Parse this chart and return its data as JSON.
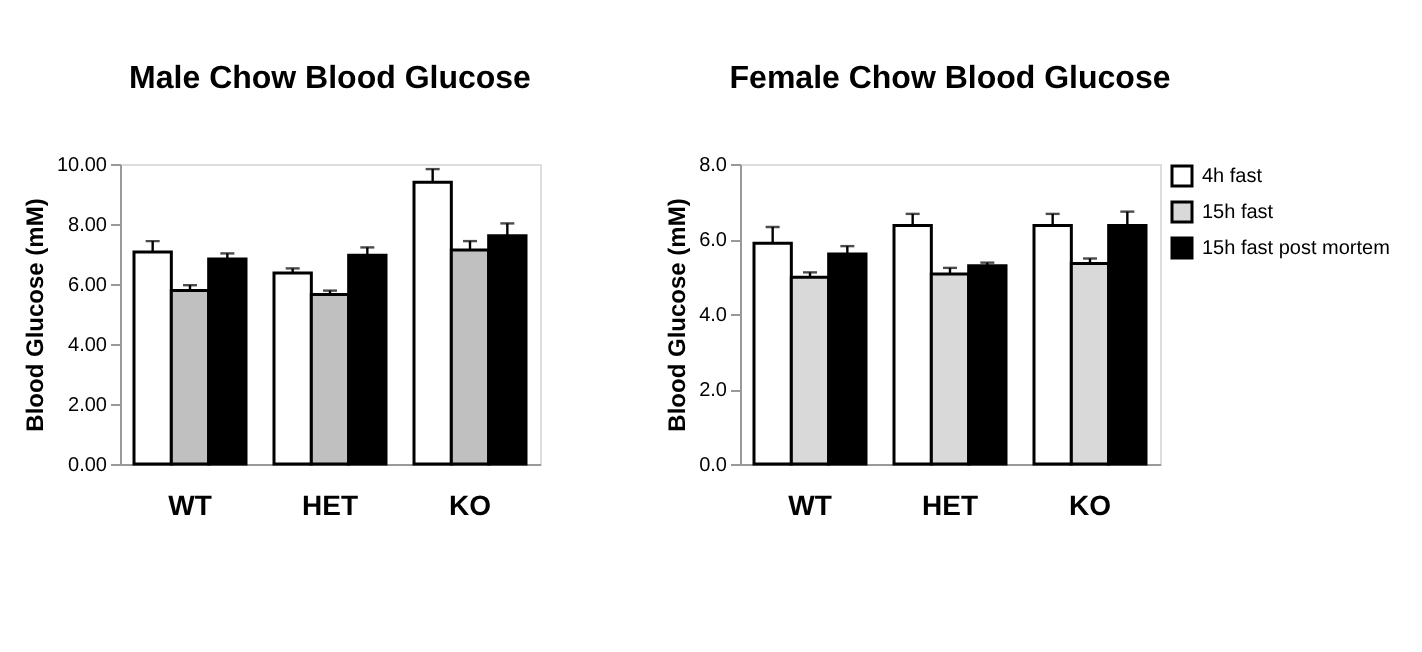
{
  "chart_data": [
    {
      "type": "bar",
      "title": "Male Chow Blood Glucose",
      "ylabel": "Blood Glucose (mM)",
      "categories": [
        "WT",
        "HET",
        "KO"
      ],
      "ylim": [
        0,
        10
      ],
      "yticks": [
        {
          "value": 0,
          "label": "0.00"
        },
        {
          "value": 2,
          "label": "2.00"
        },
        {
          "value": 4,
          "label": "4.00"
        },
        {
          "value": 6,
          "label": "6.00"
        },
        {
          "value": 8,
          "label": "8.00"
        },
        {
          "value": 10,
          "label": "10.00"
        }
      ],
      "grid": false,
      "legend": false,
      "series": [
        {
          "color": "#ffffff",
          "values": [
            7.07,
            6.37,
            9.39
          ],
          "errors": [
            [
              7.07,
              7.43
            ],
            [
              6.37,
              6.52
            ],
            [
              9.39,
              9.83
            ]
          ]
        },
        {
          "color": "#c0c0c0",
          "values": [
            5.78,
            5.65,
            7.13
          ],
          "errors": [
            [
              5.78,
              5.96
            ],
            [
              5.65,
              5.78
            ],
            [
              7.13,
              7.43
            ]
          ]
        },
        {
          "color": "#000000",
          "values": [
            6.83,
            6.96,
            7.61
          ],
          "errors": [
            [
              6.83,
              7.02
            ],
            [
              6.96,
              7.22
            ],
            [
              7.61,
              8.02
            ]
          ]
        }
      ]
    },
    {
      "type": "bar",
      "title": "Female Chow Blood Glucose",
      "ylabel": "Blood Glucose (mM)",
      "categories": [
        "WT",
        "HET",
        "KO"
      ],
      "ylim": [
        0,
        8
      ],
      "yticks": [
        {
          "value": 0,
          "label": "0.0"
        },
        {
          "value": 2,
          "label": "2.0"
        },
        {
          "value": 4,
          "label": "4.0"
        },
        {
          "value": 6,
          "label": "6.0"
        },
        {
          "value": 8,
          "label": "8.0"
        }
      ],
      "grid": false,
      "legend": "top right",
      "series": [
        {
          "name": "4h fast",
          "color": "#ffffff",
          "values": [
            5.89,
            6.36,
            6.36
          ],
          "errors": [
            [
              5.89,
              6.32
            ],
            [
              6.36,
              6.67
            ],
            [
              6.36,
              6.67
            ]
          ]
        },
        {
          "name": "15h fast",
          "color": "#d9d9d9",
          "values": [
            4.98,
            5.07,
            5.35
          ],
          "errors": [
            [
              4.98,
              5.11
            ],
            [
              5.07,
              5.23
            ],
            [
              5.35,
              5.48
            ]
          ]
        },
        {
          "name": "15h fast post mortem",
          "color": "#000000",
          "values": [
            5.6,
            5.29,
            6.36
          ],
          "errors": [
            [
              5.6,
              5.81
            ],
            [
              5.29,
              5.37
            ],
            [
              6.36,
              6.73
            ]
          ]
        }
      ]
    }
  ]
}
